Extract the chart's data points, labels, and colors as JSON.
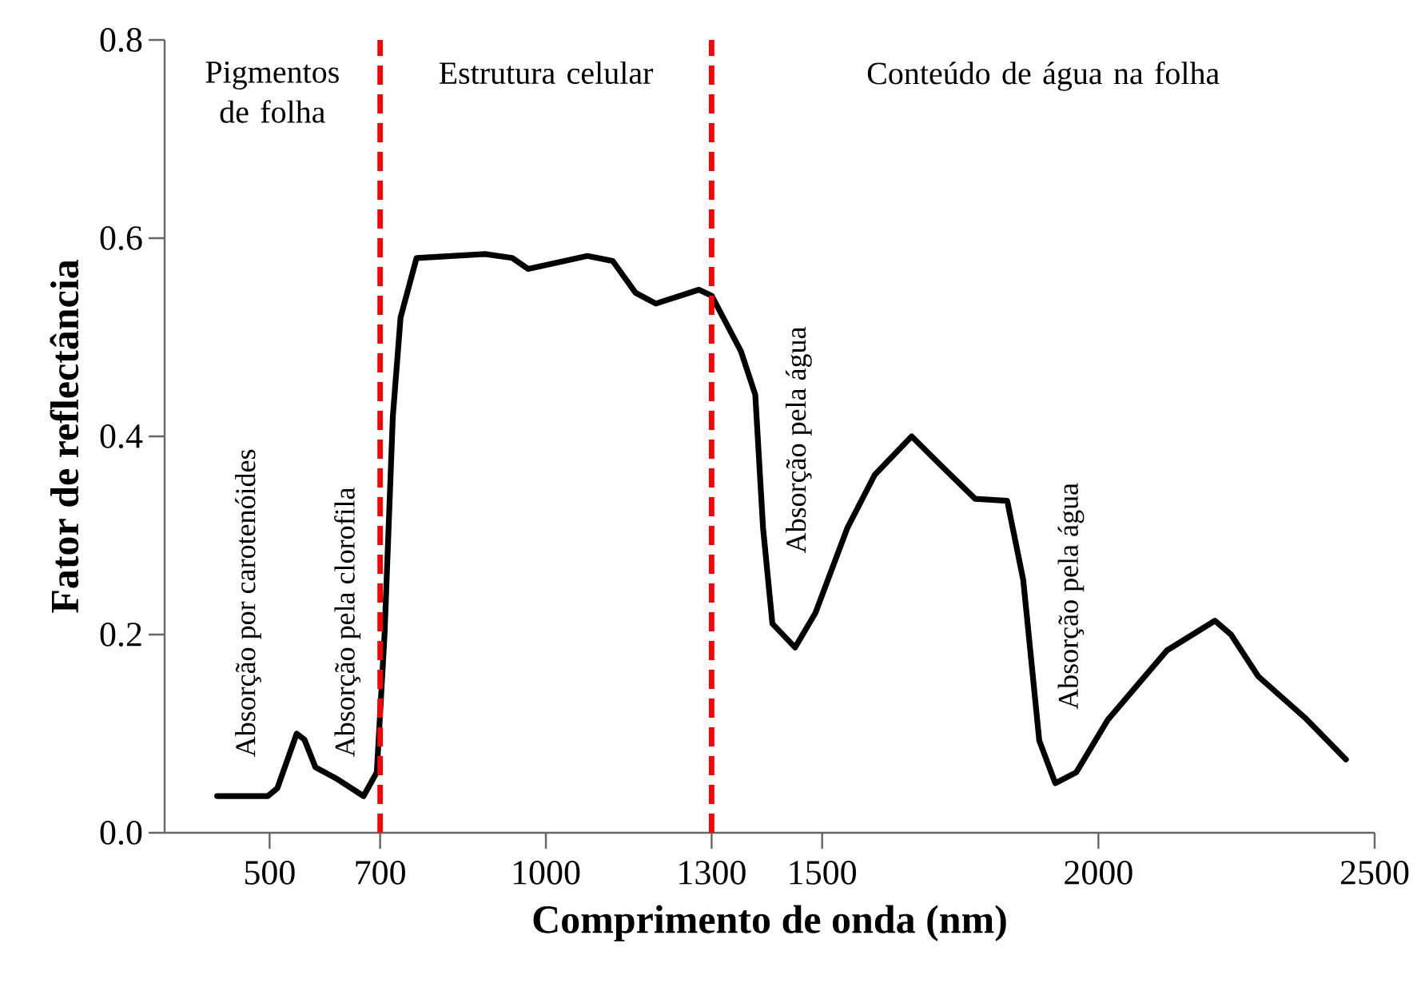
{
  "chart_data": {
    "type": "line",
    "xlabel": "Comprimento de onda (nm)",
    "ylabel": "Fator de reflectância",
    "x": [
      405,
      497,
      514,
      549,
      563,
      583,
      620,
      670,
      694,
      708,
      723,
      737,
      766,
      890,
      939,
      968,
      1075,
      1121,
      1162,
      1199,
      1277,
      1300,
      1353,
      1379,
      1393,
      1410,
      1451,
      1488,
      1546,
      1595,
      1662,
      1720,
      1777,
      1835,
      1864,
      1893,
      1922,
      1960,
      2017,
      2124,
      2211,
      2240,
      2289,
      2376,
      2448
    ],
    "series": [
      {
        "color": "#000000",
        "values": [
          0.037,
          0.037,
          0.045,
          0.1,
          0.094,
          0.066,
          0.055,
          0.037,
          0.061,
          0.2,
          0.42,
          0.52,
          0.58,
          0.584,
          0.58,
          0.569,
          0.582,
          0.577,
          0.545,
          0.534,
          0.548,
          0.542,
          0.486,
          0.442,
          0.308,
          0.211,
          0.187,
          0.222,
          0.308,
          0.361,
          0.4,
          0.368,
          0.337,
          0.335,
          0.255,
          0.093,
          0.05,
          0.061,
          0.114,
          0.184,
          0.214,
          0.2,
          0.158,
          0.115,
          0.074
        ]
      }
    ],
    "xlim": [
      310,
      2500
    ],
    "xticks": [
      500,
      700,
      1000,
      1300,
      1500,
      2000,
      2500
    ],
    "ylim": [
      0,
      0.8
    ],
    "yticks": [
      {
        "value": 0,
        "label": "0.0"
      },
      0.2,
      0.4,
      0.6,
      0.8
    ],
    "marker": "none",
    "line_style": "solid",
    "ref_lines": [
      {
        "axis": "x",
        "value": 700,
        "color": "#ff0000",
        "line_style": "dashed"
      },
      {
        "axis": "x",
        "value": 1300,
        "color": "#ff0000",
        "line_style": "dashed"
      }
    ],
    "annotations": [
      "Pigmentos de folha",
      "Estrutura celular",
      "Conteúdo de água na folha",
      "Absorção por carotenóides",
      "Absorção pela clorofila",
      "Absorção pela água",
      "Absorção pela água"
    ]
  }
}
